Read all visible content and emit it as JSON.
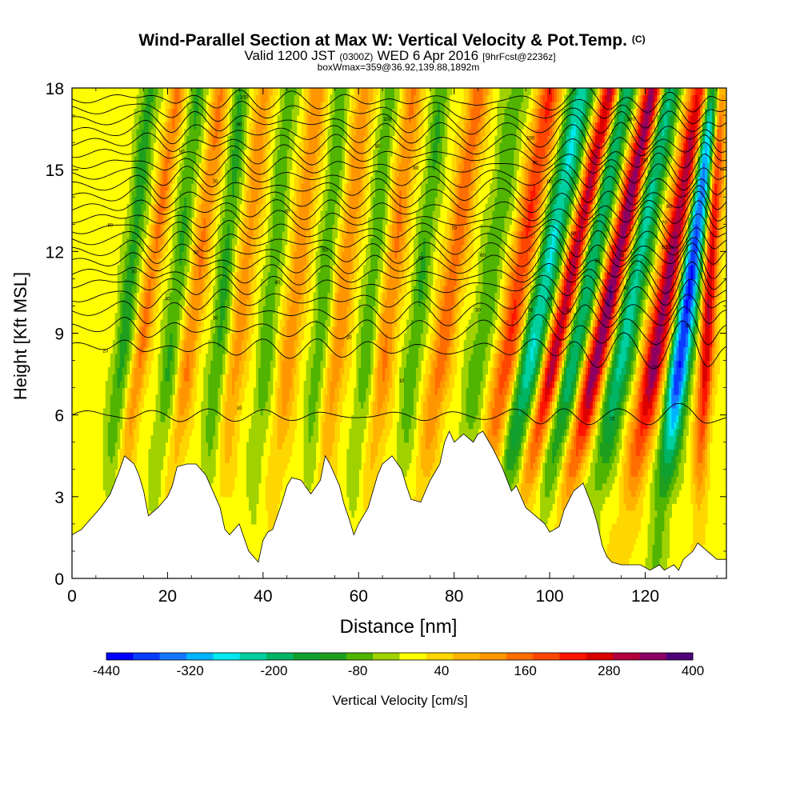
{
  "chart_data": {
    "type": "heatmap",
    "title": "Wind-Parallel Section at Max W: Vertical Velocity & Pot.Temp.",
    "title_mark": "(C)",
    "subtitle": {
      "valid": "Valid 1200 JST",
      "utc": "(0300Z)",
      "date": "WED 6 Apr 2016",
      "fcst": "[9hrFcst@2236z]"
    },
    "note": "boxWmax=359@36.92,139.88,1892m",
    "xlabel": "Distance [nm]",
    "ylabel": "Height [Kft MSL]",
    "xlim": [
      0,
      137
    ],
    "ylim": [
      0,
      18
    ],
    "x_ticks": [
      "0",
      "20",
      "40",
      "60",
      "80",
      "100",
      "120"
    ],
    "y_ticks": [
      "0",
      "3",
      "6",
      "9",
      "12",
      "15",
      "18"
    ],
    "colorbar": {
      "label": "Vertical Velocity [cm/s]",
      "tick_labels": [
        "-440",
        "-320",
        "-200",
        "-80",
        "40",
        "160",
        "280",
        "400"
      ],
      "levels": [
        -440,
        -400,
        -360,
        -320,
        -280,
        -240,
        -200,
        -160,
        -120,
        -80,
        -40,
        0,
        40,
        80,
        120,
        160,
        200,
        240,
        280,
        320,
        360,
        400
      ],
      "colors": [
        "#0000ff",
        "#0a3cff",
        "#1478ff",
        "#00b4ff",
        "#00e8f0",
        "#00d0a0",
        "#00b464",
        "#10a030",
        "#1ea01e",
        "#50b400",
        "#a0d200",
        "#ffff00",
        "#ffd700",
        "#ffb400",
        "#ff9600",
        "#ff6e00",
        "#ff4600",
        "#ff1400",
        "#dc0000",
        "#b4003c",
        "#8c0064",
        "#500078"
      ]
    },
    "terrain_profile": [
      [
        0,
        1.6
      ],
      [
        2,
        1.8
      ],
      [
        4,
        2.2
      ],
      [
        6,
        2.6
      ],
      [
        8,
        3.1
      ],
      [
        10,
        4.0
      ],
      [
        11,
        4.5
      ],
      [
        13,
        4.2
      ],
      [
        14,
        3.8
      ],
      [
        15,
        3.2
      ],
      [
        16,
        2.3
      ],
      [
        18,
        2.6
      ],
      [
        20,
        3.0
      ],
      [
        21,
        3.4
      ],
      [
        22,
        4.1
      ],
      [
        24,
        4.2
      ],
      [
        26,
        4.2
      ],
      [
        28,
        3.8
      ],
      [
        30,
        3.0
      ],
      [
        31,
        2.6
      ],
      [
        32,
        1.8
      ],
      [
        33,
        1.6
      ],
      [
        35,
        2.0
      ],
      [
        36,
        1.5
      ],
      [
        37,
        1.0
      ],
      [
        38,
        0.8
      ],
      [
        39,
        0.6
      ],
      [
        40,
        1.4
      ],
      [
        41,
        1.7
      ],
      [
        42,
        1.8
      ],
      [
        43,
        2.3
      ],
      [
        44,
        2.8
      ],
      [
        45,
        3.4
      ],
      [
        46,
        3.7
      ],
      [
        48,
        3.6
      ],
      [
        50,
        3.1
      ],
      [
        52,
        3.6
      ],
      [
        53,
        4.5
      ],
      [
        54,
        4.2
      ],
      [
        56,
        3.4
      ],
      [
        57,
        2.7
      ],
      [
        58,
        2.2
      ],
      [
        59,
        1.6
      ],
      [
        60,
        2.0
      ],
      [
        62,
        2.6
      ],
      [
        63,
        3.2
      ],
      [
        64,
        3.8
      ],
      [
        65,
        4.2
      ],
      [
        67,
        4.5
      ],
      [
        69,
        4.0
      ],
      [
        70,
        3.4
      ],
      [
        71,
        2.9
      ],
      [
        73,
        2.8
      ],
      [
        74,
        3.2
      ],
      [
        75,
        3.6
      ],
      [
        77,
        4.2
      ],
      [
        78,
        5.0
      ],
      [
        79,
        5.4
      ],
      [
        80,
        5.0
      ],
      [
        82,
        5.3
      ],
      [
        84,
        5.0
      ],
      [
        85,
        5.3
      ],
      [
        86,
        5.4
      ],
      [
        88,
        4.8
      ],
      [
        90,
        4.1
      ],
      [
        92,
        3.2
      ],
      [
        93,
        3.4
      ],
      [
        95,
        2.6
      ],
      [
        97,
        2.3
      ],
      [
        99,
        2.0
      ],
      [
        100,
        1.7
      ],
      [
        102,
        1.9
      ],
      [
        103,
        2.5
      ],
      [
        105,
        3.2
      ],
      [
        107,
        3.5
      ],
      [
        109,
        2.6
      ],
      [
        110,
        2.0
      ],
      [
        111,
        1.2
      ],
      [
        112,
        0.8
      ],
      [
        113,
        0.6
      ],
      [
        115,
        0.5
      ],
      [
        117,
        0.5
      ],
      [
        119,
        0.5
      ],
      [
        121,
        0.3
      ],
      [
        123,
        0.5
      ],
      [
        124,
        0.3
      ],
      [
        126,
        0.5
      ],
      [
        127,
        0.3
      ],
      [
        128,
        0.7
      ],
      [
        130,
        1.0
      ],
      [
        131,
        1.3
      ],
      [
        133,
        1.0
      ],
      [
        135,
        0.7
      ],
      [
        137,
        0.7
      ]
    ],
    "updraft_bands": [
      {
        "x": 11,
        "w": -120,
        "slope": 0.6,
        "width": 1.8
      },
      {
        "x": 15,
        "w": 150,
        "slope": 0.8,
        "width": 1.6
      },
      {
        "x": 21,
        "w": -100,
        "slope": 0.6,
        "width": 1.8
      },
      {
        "x": 25,
        "w": 140,
        "slope": 0.7,
        "width": 1.8
      },
      {
        "x": 31,
        "w": -110,
        "slope": 0.5,
        "width": 1.8
      },
      {
        "x": 35,
        "w": 120,
        "slope": 0.6,
        "width": 2.0
      },
      {
        "x": 41,
        "w": -90,
        "slope": 0.5,
        "width": 1.8
      },
      {
        "x": 46,
        "w": 130,
        "slope": 0.6,
        "width": 2.0
      },
      {
        "x": 52,
        "w": -90,
        "slope": 0.5,
        "width": 1.8
      },
      {
        "x": 56,
        "w": 130,
        "slope": 0.6,
        "width": 2.0
      },
      {
        "x": 62,
        "w": -90,
        "slope": 0.5,
        "width": 1.8
      },
      {
        "x": 66,
        "w": 140,
        "slope": 0.6,
        "width": 2.0
      },
      {
        "x": 72,
        "w": -100,
        "slope": 0.6,
        "width": 1.8
      },
      {
        "x": 78,
        "w": 170,
        "slope": 0.8,
        "width": 2.2
      },
      {
        "x": 86,
        "w": -90,
        "slope": 0.8,
        "width": 2.5
      },
      {
        "x": 92,
        "w": 220,
        "slope": 0.9,
        "width": 2.5
      },
      {
        "x": 97,
        "w": -260,
        "slope": 1.1,
        "width": 2.5
      },
      {
        "x": 102,
        "w": 330,
        "slope": 1.2,
        "width": 2.0
      },
      {
        "x": 106,
        "w": -220,
        "slope": 1.1,
        "width": 2.2
      },
      {
        "x": 111,
        "w": 380,
        "slope": 1.2,
        "width": 2.2
      },
      {
        "x": 116,
        "w": -240,
        "slope": 1.0,
        "width": 2.4
      },
      {
        "x": 123,
        "w": 360,
        "slope": 1.0,
        "width": 2.5
      },
      {
        "x": 128,
        "w": -430,
        "slope": 0.7,
        "width": 2.2
      },
      {
        "x": 133,
        "w": 300,
        "slope": 0.3,
        "width": 1.5
      }
    ],
    "isentropes": {
      "base_heights_kft": [
        6.0,
        8.5,
        9.2,
        9.8,
        10.3,
        10.8,
        11.2,
        11.6,
        12.0,
        12.4,
        12.8,
        13.2,
        13.6,
        14.0,
        14.4,
        14.8,
        15.2,
        15.6,
        16.0,
        16.4,
        16.8,
        17.2,
        17.6
      ],
      "labels": [
        {
          "x": 35,
          "y": 6.2,
          "text": "10"
        },
        {
          "x": 69,
          "y": 7.2,
          "text": "10"
        },
        {
          "x": 113,
          "y": 5.8,
          "text": "10"
        },
        {
          "x": 7,
          "y": 8.3,
          "text": "20"
        },
        {
          "x": 58,
          "y": 8.8,
          "text": "20"
        },
        {
          "x": 122,
          "y": 7.7,
          "text": "20"
        },
        {
          "x": 13,
          "y": 11.2,
          "text": "30"
        },
        {
          "x": 30,
          "y": 9.5,
          "text": "30"
        },
        {
          "x": 85,
          "y": 9.8,
          "text": "30"
        },
        {
          "x": 96,
          "y": 9.8,
          "text": "30"
        },
        {
          "x": 104,
          "y": 9.8,
          "text": "30"
        },
        {
          "x": 20,
          "y": 10.2,
          "text": "40"
        },
        {
          "x": 43,
          "y": 10.8,
          "text": "40"
        },
        {
          "x": 73,
          "y": 11.7,
          "text": "40"
        },
        {
          "x": 100,
          "y": 10.2,
          "text": "40"
        },
        {
          "x": 116,
          "y": 10.6,
          "text": "40"
        },
        {
          "x": 26,
          "y": 11.9,
          "text": "50"
        },
        {
          "x": 53,
          "y": 12.0,
          "text": "50"
        },
        {
          "x": 110,
          "y": 11.6,
          "text": "50"
        },
        {
          "x": 124,
          "y": 12.1,
          "text": "50"
        },
        {
          "x": 8,
          "y": 12.9,
          "text": "60"
        },
        {
          "x": 45,
          "y": 13.4,
          "text": "60"
        },
        {
          "x": 86,
          "y": 11.8,
          "text": "60"
        },
        {
          "x": 105,
          "y": 12.6,
          "text": "60"
        },
        {
          "x": 129,
          "y": 9.2,
          "text": "60"
        },
        {
          "x": 30,
          "y": 14.5,
          "text": "70"
        },
        {
          "x": 80,
          "y": 12.8,
          "text": "70"
        },
        {
          "x": 115,
          "y": 11.8,
          "text": "70"
        },
        {
          "x": 124,
          "y": 13.0,
          "text": "70"
        },
        {
          "x": 23,
          "y": 15.6,
          "text": "80"
        },
        {
          "x": 72,
          "y": 15.0,
          "text": "80"
        },
        {
          "x": 100,
          "y": 14.5,
          "text": "80"
        },
        {
          "x": 125,
          "y": 13.6,
          "text": "80"
        },
        {
          "x": 35,
          "y": 16.6,
          "text": "90"
        },
        {
          "x": 64,
          "y": 15.8,
          "text": "90"
        },
        {
          "x": 97,
          "y": 15.2,
          "text": "90"
        },
        {
          "x": 120,
          "y": 15.3,
          "text": "90"
        },
        {
          "x": 36,
          "y": 17.6,
          "text": "100"
        },
        {
          "x": 66,
          "y": 16.8,
          "text": "100"
        },
        {
          "x": 96,
          "y": 16.1,
          "text": "100"
        },
        {
          "x": 117,
          "y": 16.8,
          "text": "100"
        },
        {
          "x": 125,
          "y": 12.1,
          "text": "110"
        }
      ]
    }
  }
}
